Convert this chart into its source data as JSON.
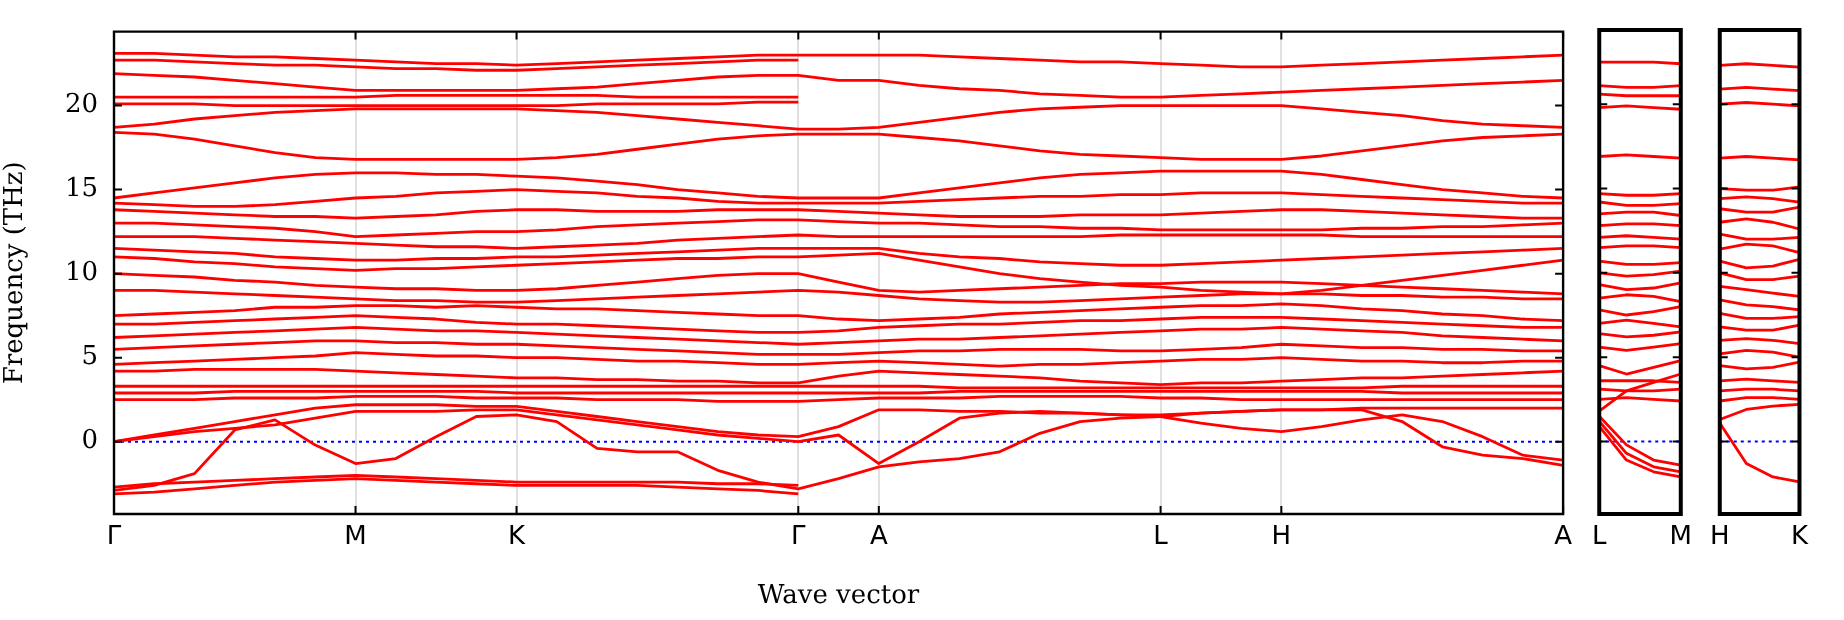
{
  "chart_data": [
    {
      "type": "line",
      "xlabel": "Wave vector",
      "ylabel": "Frequency (THz)",
      "ylim": [
        -4.3,
        24.4
      ],
      "yticks": [
        0,
        5,
        10,
        15,
        20
      ],
      "categories": [
        "Γ",
        null,
        null,
        null,
        null,
        null,
        "M",
        null,
        null,
        null,
        "K",
        null,
        null,
        null,
        null,
        null,
        null,
        "Γ",
        null,
        "A",
        null,
        null,
        null,
        null,
        null,
        null,
        "L",
        null,
        null,
        "H",
        null,
        null,
        null,
        null,
        null,
        null,
        "A"
      ],
      "grid": "x",
      "marker": "none",
      "line_style": "solid",
      "legend": false,
      "ref_lines": [
        {
          "axis": "y",
          "value": 0,
          "color": "#0000ff",
          "line_style": "dotted"
        }
      ],
      "series": [
        {
          "color": "#ff0000",
          "values": [
            23.1,
            23.1,
            23.0,
            22.9,
            22.9,
            22.8,
            22.7,
            22.6,
            22.5,
            22.5,
            22.4,
            22.5,
            22.6,
            22.7,
            22.8,
            22.9,
            23.0,
            23.0,
            23.0,
            23.0,
            23.0,
            22.9,
            22.8,
            22.7,
            22.6,
            22.6,
            22.5,
            22.4,
            22.3,
            22.3,
            22.4,
            22.5,
            22.6,
            22.7,
            22.8,
            22.9,
            23.0
          ]
        },
        {
          "color": "#ff0000",
          "values": [
            22.7,
            22.7,
            22.6,
            22.5,
            22.4,
            22.4,
            22.3,
            22.2,
            22.2,
            22.1,
            22.1,
            22.2,
            22.3,
            22.4,
            22.5,
            22.6,
            22.7,
            22.7,
            null,
            null,
            null,
            null,
            null,
            null,
            null,
            null,
            null,
            null,
            null,
            null,
            null,
            null,
            null,
            null,
            null,
            null,
            null
          ]
        },
        {
          "color": "#ff0000",
          "values": [
            21.9,
            21.8,
            21.7,
            21.5,
            21.3,
            21.1,
            20.9,
            20.9,
            20.9,
            20.9,
            20.9,
            21.0,
            21.1,
            21.3,
            21.5,
            21.7,
            21.8,
            21.8,
            21.5,
            21.5,
            21.2,
            21.0,
            20.9,
            20.7,
            20.6,
            20.5,
            20.5,
            20.6,
            20.7,
            20.8,
            20.9,
            21.0,
            21.1,
            21.2,
            21.3,
            21.4,
            21.5
          ]
        },
        {
          "color": "#ff0000",
          "values": [
            20.5,
            20.5,
            20.5,
            20.5,
            20.5,
            20.5,
            20.5,
            20.6,
            20.6,
            20.6,
            20.6,
            20.6,
            20.6,
            20.5,
            20.5,
            20.5,
            20.5,
            20.5,
            null,
            null,
            null,
            null,
            null,
            null,
            null,
            null,
            null,
            null,
            null,
            null,
            null,
            null,
            null,
            null,
            null,
            null,
            null
          ]
        },
        {
          "color": "#ff0000",
          "values": [
            20.1,
            20.1,
            20.1,
            20.0,
            20.0,
            20.0,
            20.0,
            20.0,
            20.0,
            20.0,
            20.0,
            20.0,
            20.1,
            20.1,
            20.1,
            20.1,
            20.2,
            20.2,
            null,
            null,
            null,
            null,
            null,
            null,
            null,
            null,
            null,
            null,
            null,
            null,
            null,
            null,
            null,
            null,
            null,
            null,
            null
          ]
        },
        {
          "color": "#ff0000",
          "values": [
            18.7,
            18.9,
            19.2,
            19.4,
            19.6,
            19.7,
            19.8,
            19.8,
            19.8,
            19.8,
            19.8,
            19.7,
            19.6,
            19.4,
            19.2,
            19.0,
            18.8,
            18.6,
            18.6,
            18.7,
            19.0,
            19.3,
            19.6,
            19.8,
            19.9,
            20.0,
            20.0,
            20.0,
            20.0,
            20.0,
            19.8,
            19.6,
            19.4,
            19.1,
            18.9,
            18.8,
            18.7
          ]
        },
        {
          "color": "#ff0000",
          "values": [
            18.4,
            18.3,
            18.0,
            17.6,
            17.2,
            16.9,
            16.8,
            16.8,
            16.8,
            16.8,
            16.8,
            16.9,
            17.1,
            17.4,
            17.7,
            18.0,
            18.2,
            18.3,
            18.3,
            18.3,
            18.1,
            17.9,
            17.6,
            17.3,
            17.1,
            17.0,
            16.9,
            16.8,
            16.8,
            16.8,
            17.0,
            17.3,
            17.6,
            17.9,
            18.1,
            18.2,
            18.3
          ]
        },
        {
          "color": "#ff0000",
          "values": [
            14.5,
            14.8,
            15.1,
            15.4,
            15.7,
            15.9,
            16.0,
            16.0,
            15.9,
            15.9,
            15.8,
            15.7,
            15.5,
            15.3,
            15.0,
            14.8,
            14.6,
            14.5,
            14.5,
            14.5,
            14.8,
            15.1,
            15.4,
            15.7,
            15.9,
            16.0,
            16.1,
            16.1,
            16.1,
            16.1,
            15.9,
            15.6,
            15.3,
            15.0,
            14.8,
            14.6,
            14.5
          ]
        },
        {
          "color": "#ff0000",
          "values": [
            14.2,
            14.1,
            14.0,
            14.0,
            14.1,
            14.3,
            14.5,
            14.6,
            14.8,
            14.9,
            15.0,
            14.9,
            14.8,
            14.6,
            14.5,
            14.3,
            14.2,
            14.2,
            14.2,
            14.2,
            14.3,
            14.4,
            14.5,
            14.6,
            14.6,
            14.7,
            14.7,
            14.8,
            14.8,
            14.8,
            14.7,
            14.6,
            14.5,
            14.4,
            14.3,
            14.2,
            14.2
          ]
        },
        {
          "color": "#ff0000",
          "values": [
            13.8,
            13.7,
            13.6,
            13.5,
            13.4,
            13.4,
            13.3,
            13.4,
            13.5,
            13.7,
            13.8,
            13.8,
            13.7,
            13.7,
            13.7,
            13.8,
            13.8,
            13.8,
            13.7,
            13.6,
            13.5,
            13.4,
            13.4,
            13.4,
            13.5,
            13.5,
            13.5,
            13.6,
            13.7,
            13.8,
            13.8,
            13.7,
            13.6,
            13.5,
            13.4,
            13.3,
            13.3
          ]
        },
        {
          "color": "#ff0000",
          "values": [
            13.0,
            13.0,
            12.9,
            12.8,
            12.7,
            12.5,
            12.2,
            12.3,
            12.4,
            12.5,
            12.5,
            12.6,
            12.8,
            12.9,
            13.0,
            13.1,
            13.2,
            13.2,
            13.1,
            13.0,
            13.0,
            12.9,
            12.8,
            12.8,
            12.7,
            12.7,
            12.6,
            12.6,
            12.6,
            12.6,
            12.6,
            12.7,
            12.7,
            12.8,
            12.8,
            12.9,
            13.0
          ]
        },
        {
          "color": "#ff0000",
          "values": [
            12.2,
            12.2,
            12.2,
            12.1,
            12.0,
            11.9,
            11.8,
            11.7,
            11.6,
            11.6,
            11.5,
            11.6,
            11.7,
            11.8,
            12.0,
            12.1,
            12.2,
            12.3,
            12.2,
            12.2,
            12.2,
            12.2,
            12.2,
            12.2,
            12.2,
            12.3,
            12.3,
            12.3,
            12.3,
            12.3,
            12.3,
            12.2,
            12.2,
            12.2,
            12.2,
            12.2,
            12.2
          ]
        },
        {
          "color": "#ff0000",
          "values": [
            11.5,
            11.4,
            11.3,
            11.2,
            11.0,
            10.9,
            10.8,
            10.8,
            10.9,
            10.9,
            11.0,
            11.0,
            11.1,
            11.2,
            11.3,
            11.4,
            11.5,
            11.5,
            11.5,
            11.5,
            11.2,
            11.0,
            10.9,
            10.7,
            10.6,
            10.5,
            10.5,
            10.6,
            10.7,
            10.8,
            10.9,
            11.0,
            11.1,
            11.2,
            11.3,
            11.4,
            11.5
          ]
        },
        {
          "color": "#ff0000",
          "values": [
            11.0,
            10.9,
            10.7,
            10.6,
            10.4,
            10.3,
            10.2,
            10.3,
            10.3,
            10.4,
            10.5,
            10.6,
            10.7,
            10.8,
            10.9,
            10.9,
            11.0,
            11.0,
            11.1,
            11.2,
            10.8,
            10.4,
            10.0,
            9.7,
            9.5,
            9.3,
            9.2,
            9.0,
            8.9,
            8.8,
            9.0,
            9.3,
            9.6,
            9.9,
            10.2,
            10.5,
            10.8
          ]
        },
        {
          "color": "#ff0000",
          "values": [
            10.0,
            9.9,
            9.8,
            9.6,
            9.5,
            9.3,
            9.2,
            9.1,
            9.1,
            9.0,
            9.0,
            9.1,
            9.3,
            9.5,
            9.7,
            9.9,
            10.0,
            10.0,
            9.5,
            9.0,
            8.9,
            9.0,
            9.1,
            9.2,
            9.3,
            9.4,
            9.4,
            9.5,
            9.5,
            9.5,
            9.4,
            9.3,
            9.2,
            9.1,
            9.0,
            8.9,
            8.8
          ]
        },
        {
          "color": "#ff0000",
          "values": [
            9.0,
            9.0,
            8.9,
            8.8,
            8.7,
            8.6,
            8.5,
            8.4,
            8.4,
            8.3,
            8.3,
            8.4,
            8.5,
            8.6,
            8.7,
            8.8,
            8.9,
            9.0,
            8.9,
            8.7,
            8.5,
            8.4,
            8.3,
            8.3,
            8.4,
            8.5,
            8.6,
            8.7,
            8.8,
            8.8,
            8.8,
            8.7,
            8.7,
            8.6,
            8.6,
            8.5,
            8.5
          ]
        },
        {
          "color": "#ff0000",
          "values": [
            7.5,
            7.6,
            7.7,
            7.8,
            8.0,
            8.0,
            8.1,
            8.1,
            8.0,
            8.1,
            8.0,
            7.9,
            7.9,
            7.8,
            7.7,
            7.6,
            7.5,
            7.5,
            7.3,
            7.2,
            7.3,
            7.4,
            7.6,
            7.7,
            7.8,
            7.9,
            8.0,
            8.1,
            8.1,
            8.2,
            8.1,
            7.9,
            7.8,
            7.6,
            7.5,
            7.3,
            7.2
          ]
        },
        {
          "color": "#ff0000",
          "values": [
            7.0,
            7.0,
            7.1,
            7.2,
            7.3,
            7.4,
            7.5,
            7.4,
            7.3,
            7.1,
            7.0,
            7.0,
            6.9,
            6.8,
            6.7,
            6.6,
            6.5,
            6.5,
            6.6,
            6.8,
            6.9,
            7.0,
            7.0,
            7.1,
            7.2,
            7.2,
            7.3,
            7.4,
            7.4,
            7.4,
            7.3,
            7.2,
            7.1,
            7.0,
            6.9,
            6.8,
            6.8
          ]
        },
        {
          "color": "#ff0000",
          "values": [
            6.2,
            6.3,
            6.4,
            6.5,
            6.6,
            6.7,
            6.8,
            6.7,
            6.6,
            6.6,
            6.5,
            6.4,
            6.3,
            6.2,
            6.1,
            6.0,
            5.9,
            5.8,
            5.9,
            6.0,
            6.1,
            6.1,
            6.2,
            6.3,
            6.4,
            6.5,
            6.6,
            6.7,
            6.7,
            6.8,
            6.7,
            6.6,
            6.5,
            6.3,
            6.2,
            6.1,
            6.0
          ]
        },
        {
          "color": "#ff0000",
          "values": [
            5.5,
            5.6,
            5.7,
            5.8,
            5.9,
            6.0,
            6.0,
            5.9,
            5.9,
            5.8,
            5.8,
            5.7,
            5.6,
            5.5,
            5.4,
            5.3,
            5.2,
            5.2,
            5.2,
            5.3,
            5.4,
            5.4,
            5.5,
            5.5,
            5.5,
            5.4,
            5.4,
            5.5,
            5.6,
            5.8,
            5.7,
            5.6,
            5.6,
            5.5,
            5.5,
            5.4,
            5.4
          ]
        },
        {
          "color": "#ff0000",
          "values": [
            4.6,
            4.7,
            4.8,
            4.9,
            5.0,
            5.1,
            5.3,
            5.2,
            5.1,
            5.1,
            5.0,
            5.0,
            4.9,
            4.8,
            4.8,
            4.7,
            4.6,
            4.6,
            4.7,
            4.8,
            4.7,
            4.6,
            4.5,
            4.6,
            4.6,
            4.7,
            4.8,
            4.9,
            4.9,
            5.0,
            4.9,
            4.8,
            4.8,
            4.7,
            4.7,
            4.8,
            4.8
          ]
        },
        {
          "color": "#ff0000",
          "values": [
            4.2,
            4.2,
            4.3,
            4.3,
            4.3,
            4.3,
            4.2,
            4.1,
            4.0,
            3.9,
            3.8,
            3.8,
            3.7,
            3.7,
            3.6,
            3.6,
            3.5,
            3.5,
            3.9,
            4.2,
            4.1,
            4.0,
            3.9,
            3.8,
            3.6,
            3.5,
            3.4,
            3.5,
            3.5,
            3.6,
            3.7,
            3.8,
            3.8,
            3.9,
            4.0,
            4.1,
            4.2
          ]
        },
        {
          "color": "#ff0000",
          "values": [
            3.3,
            3.3,
            3.3,
            3.3,
            3.3,
            3.3,
            3.3,
            3.3,
            3.3,
            3.3,
            3.3,
            3.3,
            3.3,
            3.3,
            3.3,
            3.3,
            3.3,
            3.3,
            3.3,
            3.3,
            3.3,
            3.2,
            3.2,
            3.2,
            3.2,
            3.2,
            3.2,
            3.2,
            3.2,
            3.2,
            3.2,
            3.2,
            3.3,
            3.3,
            3.3,
            3.3,
            3.3
          ]
        },
        {
          "color": "#ff0000",
          "values": [
            2.9,
            2.9,
            2.9,
            3.0,
            3.0,
            3.0,
            3.0,
            3.0,
            3.0,
            3.0,
            2.9,
            2.9,
            2.9,
            2.9,
            2.9,
            2.9,
            2.9,
            2.9,
            2.9,
            2.9,
            2.9,
            3.0,
            3.0,
            3.0,
            3.0,
            3.0,
            3.0,
            3.0,
            3.0,
            3.0,
            3.0,
            3.0,
            2.9,
            2.9,
            2.9,
            2.9,
            2.9
          ]
        },
        {
          "color": "#ff0000",
          "values": [
            2.5,
            2.5,
            2.5,
            2.6,
            2.6,
            2.6,
            2.7,
            2.7,
            2.7,
            2.6,
            2.6,
            2.6,
            2.5,
            2.5,
            2.5,
            2.4,
            2.4,
            2.4,
            2.5,
            2.6,
            2.6,
            2.6,
            2.7,
            2.7,
            2.7,
            2.7,
            2.6,
            2.6,
            2.5,
            2.5,
            2.5,
            2.5,
            2.5,
            2.5,
            2.5,
            2.5,
            2.5
          ]
        },
        {
          "color": "#ff0000",
          "values": [
            0,
            0.4,
            0.8,
            1.2,
            1.6,
            2.0,
            2.2,
            2.2,
            2.2,
            2.1,
            2.1,
            1.8,
            1.5,
            1.2,
            0.9,
            0.6,
            0.4,
            0.3,
            0.9,
            1.9,
            1.9,
            1.8,
            1.8,
            1.7,
            1.7,
            1.6,
            1.6,
            1.7,
            1.8,
            1.9,
            1.9,
            2.0,
            2.0,
            2.0,
            2.0,
            2.0,
            2.0
          ]
        },
        {
          "color": "#ff0000",
          "values": [
            0,
            0.3,
            0.6,
            0.8,
            1.0,
            1.4,
            1.8,
            1.8,
            1.8,
            1.9,
            1.9,
            1.6,
            1.3,
            1.0,
            0.7,
            0.4,
            0.2,
            0,
            0.4,
            -1.3,
            0,
            1.4,
            1.7,
            1.8,
            1.7,
            1.6,
            1.5,
            1.1,
            0.8,
            0.6,
            0.9,
            1.3,
            1.6,
            1.2,
            0.3,
            -0.8,
            -1.1
          ]
        },
        {
          "color": "#ff0000",
          "values": [
            -2.9,
            -2.6,
            -1.9,
            0.7,
            1.3,
            -0.2,
            -1.3,
            -1.0,
            0.3,
            1.5,
            1.6,
            1.2,
            -0.4,
            -0.6,
            -0.6,
            -1.7,
            -2.4,
            -2.8,
            -2.2,
            -1.5,
            -1.2,
            -1.0,
            -0.6,
            0.5,
            1.2,
            1.4,
            1.5,
            1.7,
            1.8,
            1.9,
            1.9,
            1.9,
            1.2,
            -0.3,
            -0.8,
            -1.0,
            -1.4
          ]
        },
        {
          "color": "#ff0000",
          "values": [
            -2.7,
            -2.5,
            -2.4,
            -2.3,
            -2.2,
            -2.1,
            -2.0,
            -2.1,
            -2.2,
            -2.3,
            -2.4,
            -2.4,
            -2.4,
            -2.4,
            -2.4,
            -2.5,
            -2.5,
            -2.6,
            null,
            null,
            null,
            null,
            null,
            null,
            null,
            null,
            null,
            null,
            null,
            null,
            null,
            null,
            null,
            null,
            null,
            null,
            null
          ]
        },
        {
          "color": "#ff0000",
          "values": [
            -3.1,
            -3.0,
            -2.8,
            -2.6,
            -2.4,
            -2.3,
            -2.2,
            -2.3,
            -2.4,
            -2.5,
            -2.6,
            -2.6,
            -2.6,
            -2.6,
            -2.7,
            -2.8,
            -2.9,
            -3.1,
            null,
            null,
            null,
            null,
            null,
            null,
            null,
            null,
            null,
            null,
            null,
            null,
            null,
            null,
            null,
            null,
            null,
            null,
            null
          ]
        }
      ]
    },
    {
      "type": "line",
      "ylim": [
        -4.3,
        24.4
      ],
      "yticks": [
        0,
        5,
        10,
        15,
        20
      ],
      "tick_labels": "x",
      "categories": [
        "L",
        null,
        null,
        "M"
      ],
      "marker": "none",
      "line_style": "solid",
      "legend": false,
      "ref_lines": [
        {
          "axis": "y",
          "value": 0,
          "color": "#0000ff",
          "line_style": "dotted"
        }
      ],
      "series": [
        {
          "color": "#ff0000",
          "values": [
            22.5,
            22.5,
            22.5,
            22.4
          ]
        },
        {
          "color": "#ff0000",
          "values": [
            21.1,
            21.0,
            21.0,
            21.1
          ]
        },
        {
          "color": "#ff0000",
          "values": [
            20.6,
            20.5,
            20.5,
            20.5
          ]
        },
        {
          "color": "#ff0000",
          "values": [
            19.8,
            19.9,
            19.8,
            19.7
          ]
        },
        {
          "color": "#ff0000",
          "values": [
            16.9,
            17.0,
            16.9,
            16.8
          ]
        },
        {
          "color": "#ff0000",
          "values": [
            14.7,
            14.6,
            14.6,
            14.7
          ]
        },
        {
          "color": "#ff0000",
          "values": [
            14.2,
            14.0,
            14.0,
            14.1
          ]
        },
        {
          "color": "#ff0000",
          "values": [
            13.5,
            13.6,
            13.6,
            13.4
          ]
        },
        {
          "color": "#ff0000",
          "values": [
            12.8,
            12.9,
            12.9,
            12.8
          ]
        },
        {
          "color": "#ff0000",
          "values": [
            12.1,
            12.2,
            12.1,
            12.0
          ]
        },
        {
          "color": "#ff0000",
          "values": [
            11.5,
            11.6,
            11.6,
            11.5
          ]
        },
        {
          "color": "#ff0000",
          "values": [
            10.7,
            10.5,
            10.5,
            10.6
          ]
        },
        {
          "color": "#ff0000",
          "values": [
            10.0,
            9.8,
            9.9,
            10.1
          ]
        },
        {
          "color": "#ff0000",
          "values": [
            9.3,
            9.0,
            9.1,
            9.4
          ]
        },
        {
          "color": "#ff0000",
          "values": [
            8.5,
            8.7,
            8.6,
            8.3
          ]
        },
        {
          "color": "#ff0000",
          "values": [
            7.8,
            7.5,
            7.7,
            8.0
          ]
        },
        {
          "color": "#ff0000",
          "values": [
            7.0,
            7.2,
            7.0,
            6.8
          ]
        },
        {
          "color": "#ff0000",
          "values": [
            6.4,
            6.2,
            6.3,
            6.5
          ]
        },
        {
          "color": "#ff0000",
          "values": [
            5.6,
            5.4,
            5.6,
            5.8
          ]
        },
        {
          "color": "#ff0000",
          "values": [
            4.5,
            4.0,
            4.4,
            4.8
          ]
        },
        {
          "color": "#ff0000",
          "values": [
            3.6,
            3.6,
            3.6,
            3.5
          ]
        },
        {
          "color": "#ff0000",
          "values": [
            3.1,
            3.0,
            3.0,
            3.1
          ]
        },
        {
          "color": "#ff0000",
          "values": [
            2.5,
            2.6,
            2.5,
            2.4
          ]
        },
        {
          "color": "#ff0000",
          "values": [
            1.8,
            3.0,
            3.5,
            4.0
          ]
        },
        {
          "color": "#ff0000",
          "values": [
            1.5,
            -0.2,
            -1.1,
            -1.4
          ]
        },
        {
          "color": "#ff0000",
          "values": [
            1.2,
            -0.7,
            -1.5,
            -1.8
          ]
        },
        {
          "color": "#ff0000",
          "values": [
            0.9,
            -1.1,
            -1.8,
            -2.1
          ]
        }
      ]
    },
    {
      "type": "line",
      "ylim": [
        -4.3,
        24.4
      ],
      "yticks": [
        0,
        5,
        10,
        15,
        20
      ],
      "tick_labels": "x",
      "categories": [
        "H",
        null,
        null,
        "K"
      ],
      "marker": "none",
      "line_style": "solid",
      "legend": false,
      "ref_lines": [
        {
          "axis": "y",
          "value": 0,
          "color": "#0000ff",
          "line_style": "dotted"
        }
      ],
      "series": [
        {
          "color": "#ff0000",
          "values": [
            22.3,
            22.4,
            22.3,
            22.2
          ]
        },
        {
          "color": "#ff0000",
          "values": [
            20.9,
            21.0,
            20.9,
            20.8
          ]
        },
        {
          "color": "#ff0000",
          "values": [
            20.0,
            20.1,
            20.0,
            19.9
          ]
        },
        {
          "color": "#ff0000",
          "values": [
            16.8,
            16.9,
            16.8,
            16.7
          ]
        },
        {
          "color": "#ff0000",
          "values": [
            15.0,
            14.9,
            14.9,
            15.1
          ]
        },
        {
          "color": "#ff0000",
          "values": [
            14.4,
            14.5,
            14.4,
            14.2
          ]
        },
        {
          "color": "#ff0000",
          "values": [
            13.8,
            13.6,
            13.6,
            13.9
          ]
        },
        {
          "color": "#ff0000",
          "values": [
            13.0,
            13.2,
            13.0,
            12.6
          ]
        },
        {
          "color": "#ff0000",
          "values": [
            12.3,
            12.0,
            12.0,
            12.1
          ]
        },
        {
          "color": "#ff0000",
          "values": [
            11.4,
            11.7,
            11.6,
            11.2
          ]
        },
        {
          "color": "#ff0000",
          "values": [
            10.7,
            10.3,
            10.4,
            10.8
          ]
        },
        {
          "color": "#ff0000",
          "values": [
            10.0,
            9.6,
            9.6,
            9.8
          ]
        },
        {
          "color": "#ff0000",
          "values": [
            9.2,
            9.0,
            8.8,
            8.6
          ]
        },
        {
          "color": "#ff0000",
          "values": [
            8.4,
            8.1,
            8.0,
            7.8
          ]
        },
        {
          "color": "#ff0000",
          "values": [
            7.6,
            7.3,
            7.3,
            7.4
          ]
        },
        {
          "color": "#ff0000",
          "values": [
            6.8,
            6.6,
            6.6,
            6.9
          ]
        },
        {
          "color": "#ff0000",
          "values": [
            6.0,
            6.1,
            6.0,
            5.8
          ]
        },
        {
          "color": "#ff0000",
          "values": [
            5.2,
            5.4,
            5.3,
            5.0
          ]
        },
        {
          "color": "#ff0000",
          "values": [
            4.5,
            4.3,
            4.4,
            4.7
          ]
        },
        {
          "color": "#ff0000",
          "values": [
            3.6,
            3.7,
            3.6,
            3.5
          ]
        },
        {
          "color": "#ff0000",
          "values": [
            3.0,
            3.1,
            3.1,
            3.0
          ]
        },
        {
          "color": "#ff0000",
          "values": [
            2.4,
            2.6,
            2.6,
            2.5
          ]
        },
        {
          "color": "#ff0000",
          "values": [
            1.3,
            1.9,
            2.1,
            2.2
          ]
        },
        {
          "color": "#ff0000",
          "values": [
            1.1,
            -1.3,
            -2.1,
            -2.4
          ]
        }
      ]
    }
  ]
}
